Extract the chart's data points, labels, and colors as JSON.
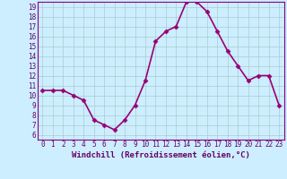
{
  "x": [
    0,
    1,
    2,
    3,
    4,
    5,
    6,
    7,
    8,
    9,
    10,
    11,
    12,
    13,
    14,
    15,
    16,
    17,
    18,
    19,
    20,
    21,
    22,
    23
  ],
  "y": [
    10.5,
    10.5,
    10.5,
    10.0,
    9.5,
    7.5,
    7.0,
    6.5,
    7.5,
    9.0,
    11.5,
    15.5,
    16.5,
    17.0,
    19.5,
    19.5,
    18.5,
    16.5,
    14.5,
    13.0,
    11.5,
    12.0,
    12.0,
    9.0
  ],
  "xlabel": "Windchill (Refroidissement éolien,°C)",
  "ylim_min": 5.5,
  "ylim_max": 19.5,
  "xlim_min": -0.5,
  "xlim_max": 23.5,
  "yticks": [
    6,
    7,
    8,
    9,
    10,
    11,
    12,
    13,
    14,
    15,
    16,
    17,
    18,
    19
  ],
  "xticks": [
    0,
    1,
    2,
    3,
    4,
    5,
    6,
    7,
    8,
    9,
    10,
    11,
    12,
    13,
    14,
    15,
    16,
    17,
    18,
    19,
    20,
    21,
    22,
    23
  ],
  "line_color": "#990077",
  "marker": "D",
  "marker_size": 2.5,
  "bg_color": "#cceeff",
  "grid_color": "#aacccc",
  "spine_color": "#880088",
  "label_color": "#660066",
  "tick_color": "#660066",
  "xlabel_fontsize": 6.5,
  "tick_fontsize": 5.5,
  "linewidth": 1.2
}
